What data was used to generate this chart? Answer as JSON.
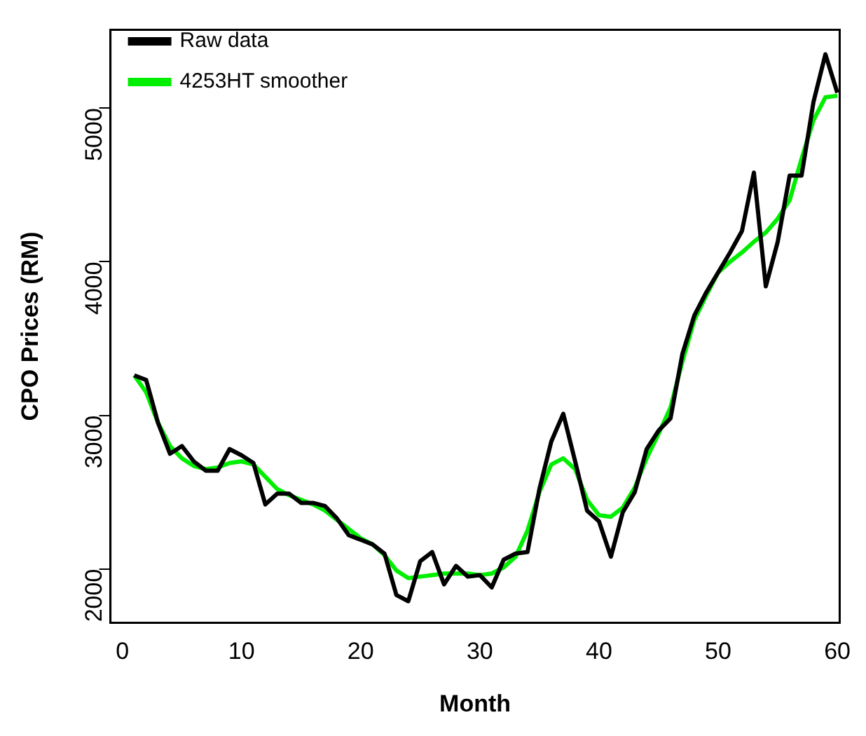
{
  "chart_data": {
    "type": "line",
    "xlabel": "Month",
    "ylabel": "CPO Prices (RM)",
    "x": [
      1,
      2,
      3,
      4,
      5,
      6,
      7,
      8,
      9,
      10,
      11,
      12,
      13,
      14,
      15,
      16,
      17,
      18,
      19,
      20,
      21,
      22,
      23,
      24,
      25,
      26,
      27,
      28,
      29,
      30,
      31,
      32,
      33,
      34,
      35,
      36,
      37,
      38,
      39,
      40,
      41,
      42,
      43,
      44,
      45,
      46,
      47,
      48,
      49,
      50,
      51,
      52,
      53,
      54,
      55,
      56,
      57,
      58,
      59,
      60
    ],
    "series": [
      {
        "name": "Raw data",
        "color": "#000000",
        "values": [
          3260,
          3230,
          2950,
          2750,
          2800,
          2700,
          2640,
          2640,
          2780,
          2740,
          2690,
          2420,
          2490,
          2490,
          2430,
          2430,
          2410,
          2330,
          2220,
          2190,
          2160,
          2100,
          1830,
          1790,
          2050,
          2110,
          1900,
          2020,
          1950,
          1960,
          1880,
          2060,
          2100,
          2110,
          2520,
          2830,
          3010,
          2700,
          2380,
          2310,
          2080,
          2370,
          2500,
          2780,
          2900,
          2980,
          3400,
          3650,
          3800,
          3930,
          4060,
          4200,
          4580,
          3840,
          4130,
          4560,
          4560,
          5040,
          5350,
          5100
        ]
      },
      {
        "name": "4253HT smoother",
        "color": "#00ee00",
        "values": [
          3260,
          3150,
          2950,
          2800,
          2720,
          2670,
          2650,
          2660,
          2690,
          2700,
          2680,
          2600,
          2520,
          2480,
          2450,
          2420,
          2380,
          2320,
          2260,
          2200,
          2160,
          2090,
          1990,
          1940,
          1950,
          1960,
          1970,
          1970,
          1970,
          1960,
          1970,
          2010,
          2080,
          2250,
          2500,
          2680,
          2720,
          2650,
          2450,
          2350,
          2340,
          2400,
          2530,
          2720,
          2880,
          3050,
          3350,
          3620,
          3780,
          3930,
          4000,
          4060,
          4130,
          4190,
          4280,
          4400,
          4670,
          4920,
          5070,
          5080
        ]
      }
    ],
    "xlim": [
      -1,
      60.2
    ],
    "xticks": [
      0,
      10,
      20,
      30,
      40,
      50,
      60
    ],
    "ylim": [
      1650,
      5510
    ],
    "yticks": [
      2000,
      3000,
      4000,
      5000
    ],
    "grid": false,
    "legend": "top left",
    "marker": "none",
    "line_style": "solid"
  }
}
